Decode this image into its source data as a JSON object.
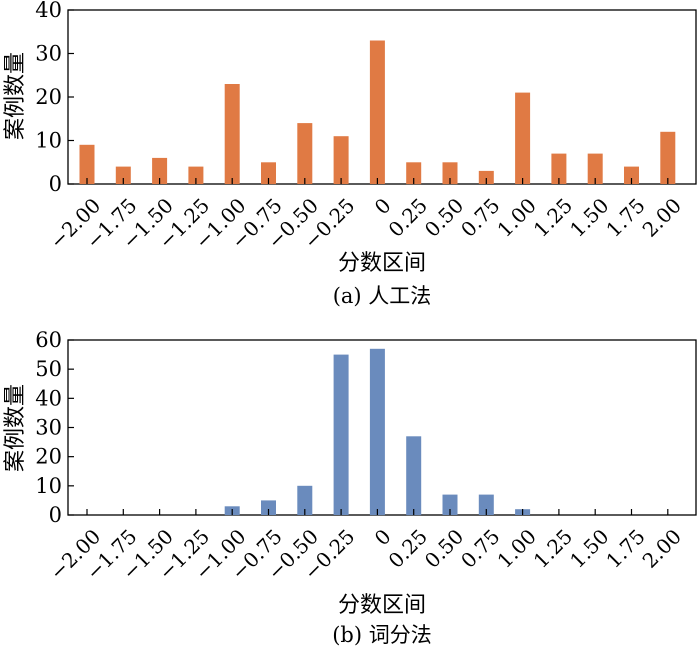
{
  "chart_data": [
    {
      "type": "bar",
      "categories": [
        "-2.00",
        "-1.75",
        "-1.50",
        "-1.25",
        "-1.00",
        "-0.75",
        "-0.50",
        "-0.25",
        "0",
        "0.25",
        "0.50",
        "0.75",
        "1.00",
        "1.25",
        "1.50",
        "1.75",
        "2.00"
      ],
      "tick_labels": [
        "−2.00",
        "−1.75",
        "−1.50",
        "−1.25",
        "−1.00",
        "−0.75",
        "−0.50",
        "−0.25",
        "0",
        "0.25",
        "0.50",
        "0.75",
        "1.00",
        "1.25",
        "1.50",
        "1.75",
        "2.00"
      ],
      "values": [
        9,
        4,
        6,
        4,
        23,
        5,
        14,
        11,
        33,
        5,
        5,
        3,
        21,
        7,
        7,
        4,
        12
      ],
      "xlabel": "分数区间",
      "ylabel": "案例数量",
      "caption": "(a) 人工法",
      "ylim": [
        0,
        40
      ],
      "yticks": [
        0,
        10,
        20,
        30,
        40
      ],
      "color": "#e07a44",
      "grid": false
    },
    {
      "type": "bar",
      "categories": [
        "-2.00",
        "-1.75",
        "-1.50",
        "-1.25",
        "-1.00",
        "-0.75",
        "-0.50",
        "-0.25",
        "0",
        "0.25",
        "0.50",
        "0.75",
        "1.00",
        "1.25",
        "1.50",
        "1.75",
        "2.00"
      ],
      "tick_labels": [
        "−2.00",
        "−1.75",
        "−1.50",
        "−1.25",
        "−1.00",
        "−0.75",
        "−0.50",
        "−0.25",
        "0",
        "0.25",
        "0.50",
        "0.75",
        "1.00",
        "1.25",
        "1.50",
        "1.75",
        "2.00"
      ],
      "values": [
        0,
        0,
        0,
        0,
        3,
        5,
        10,
        55,
        57,
        27,
        7,
        7,
        2,
        0,
        0,
        0,
        0
      ],
      "xlabel": "分数区间",
      "ylabel": "案例数量",
      "caption": "(b) 词分法",
      "ylim": [
        0,
        60
      ],
      "yticks": [
        0,
        10,
        20,
        30,
        40,
        50,
        60
      ],
      "color": "#6a8bbd",
      "grid": false
    }
  ]
}
